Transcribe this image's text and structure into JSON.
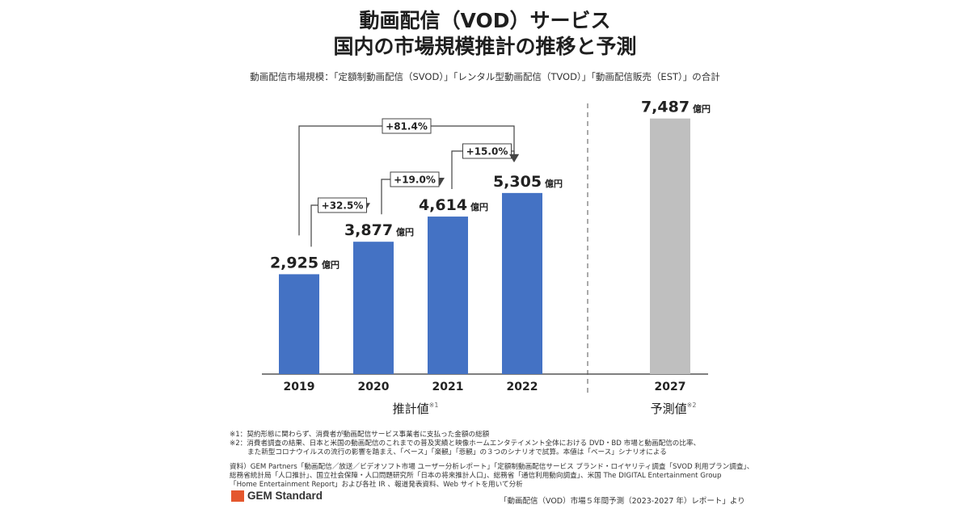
{
  "title": {
    "line1": "動画配信（VOD）サービス",
    "line2": "国内の市場規模推計の推移と予測"
  },
  "subtitle": "動画配信市場規模：「定額制動画配信（SVOD）」「レンタル型動画配信（TVOD）」「動画配信販売（EST）」の合計",
  "chart_data": {
    "type": "bar",
    "categories": [
      "2019",
      "2020",
      "2021",
      "2022",
      "2027"
    ],
    "values": [
      2925,
      3877,
      4614,
      5305,
      7487
    ],
    "value_labels": [
      "2,925",
      "3,877",
      "4,614",
      "5,305",
      "7,487"
    ],
    "unit": "億円",
    "bar_colors": [
      "#4472c4",
      "#4472c4",
      "#4472c4",
      "#4472c4",
      "#bfbfbf"
    ],
    "ylim": [
      0,
      8000
    ],
    "growth": [
      {
        "from": "2019",
        "to": "2020",
        "label": "+32.5%"
      },
      {
        "from": "2020",
        "to": "2021",
        "label": "+19.0%"
      },
      {
        "from": "2021",
        "to": "2022",
        "label": "+15.0%"
      },
      {
        "from": "2019",
        "to": "2022",
        "label": "+81.4%"
      }
    ],
    "groups": [
      {
        "label": "推計値",
        "note": "※1"
      },
      {
        "label": "予測値",
        "note": "※2"
      }
    ],
    "grid": false
  },
  "notes": [
    "※1：契約形態に関わらず、消費者が動画配信サービス事業者に支払った金額の総額",
    "※2：消費者調査の結果、日本と米国の動画配信のこれまでの普及実績と映像ホームエンタテイメント全体における DVD・BD 市場と動画配信の比率、",
    "また新型コロナウイルスの流行の影響を踏まえ、「ベース」「楽観」「悲観」の３つのシナリオで試算。本値は「ベース」シナリオによる"
  ],
  "sources": [
    "資料）GEM Partners「動画配信／放送／ビデオソフト市場 ユーザー分析レポート」「定額制動画配信サービス ブランド・ロイヤリティ調査「SVOD 利用プラン調査」、",
    "総務省統計局「人口推計」、国立社会保障・人口問題研究所「日本の将来推計人口」、総務省「通信利用動向調査」、米国 The DIGITAL Entertainment Group",
    "「Home Entertainment Report」および各社 IR 、報道発表資料、Web サイトを用いて分析"
  ],
  "logo": "GEM Standard",
  "footer": "「動画配信（VOD）市場５年間予測（2023-2027 年）レポート」より"
}
